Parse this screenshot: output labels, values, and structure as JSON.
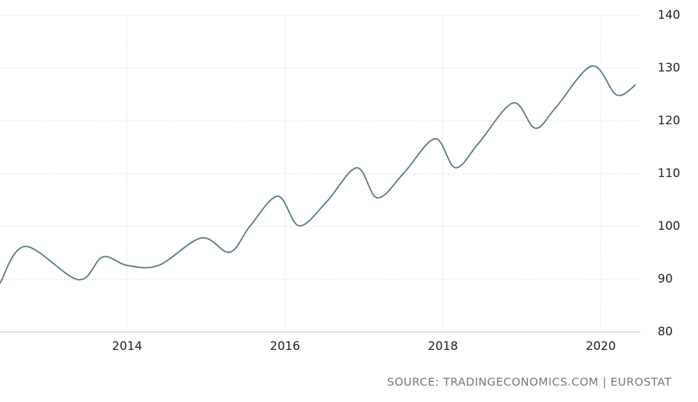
{
  "chart_data": {
    "type": "line",
    "source": "SOURCE: TRADINGECONOMICS.COM | EUROSTAT",
    "x": [
      2012.39,
      2012.71,
      2013.38,
      2013.69,
      2014.0,
      2014.4,
      2014.94,
      2015.3,
      2015.56,
      2015.91,
      2016.18,
      2016.53,
      2016.91,
      2017.17,
      2017.5,
      2017.9,
      2018.16,
      2018.46,
      2018.89,
      2019.17,
      2019.43,
      2019.89,
      2020.2,
      2020.44
    ],
    "series": [
      {
        "color": "#5b7c86",
        "values": [
          89.2,
          96.2,
          89.9,
          94.2,
          92.6,
          92.6,
          97.8,
          95.1,
          100.1,
          105.7,
          100.1,
          104.7,
          111.1,
          105.4,
          110.0,
          116.6,
          111.1,
          115.9,
          123.4,
          118.6,
          122.5,
          130.4,
          124.9,
          126.8
        ]
      }
    ],
    "xlim": [
      2012.39,
      2020.5
    ],
    "xticks": [
      2014,
      2016,
      2018,
      2020
    ],
    "ylim": [
      80,
      140
    ],
    "yticks": [
      80,
      90,
      100,
      110,
      120,
      130,
      140
    ],
    "grid": true
  }
}
